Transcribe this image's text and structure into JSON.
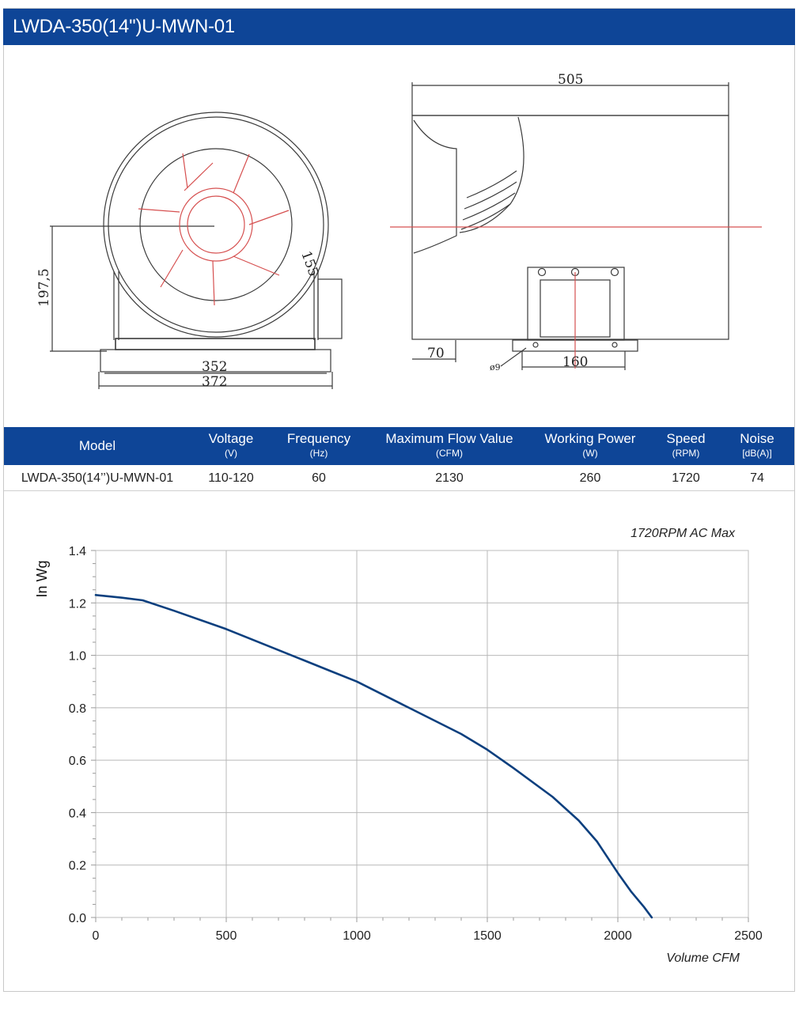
{
  "title": "LWDA-350(14'')U-MWN-01",
  "drawing": {
    "dimensions": {
      "width_top": "505",
      "height_left": "197,5",
      "base_inner": "352",
      "base_outer": "372",
      "flange": "155",
      "inlet": "70",
      "mount_span": "160",
      "hole": "ø9"
    }
  },
  "specs": {
    "headers": [
      {
        "label": "Model",
        "unit": ""
      },
      {
        "label": "Voltage",
        "unit": "(V)"
      },
      {
        "label": "Frequency",
        "unit": "(Hz)"
      },
      {
        "label": "Maximum Flow Value",
        "unit": "(CFM)"
      },
      {
        "label": "Working Power",
        "unit": "(W)"
      },
      {
        "label": "Speed",
        "unit": "(RPM)"
      },
      {
        "label": "Noise",
        "unit": "[dB(A)]"
      }
    ],
    "row": [
      "LWDA-350(14’’)U-MWN-01",
      "110-120",
      "60",
      "2130",
      "260",
      "1720",
      "74"
    ]
  },
  "colors": {
    "header_blue": "#0e4597",
    "curve_blue": "#0b3f7e",
    "drawing_red": "#d65050"
  },
  "chart_data": {
    "type": "line",
    "annotation": "1720RPM AC Max",
    "xlabel": "Volume CFM",
    "ylabel": "In Wg",
    "xlim": [
      0,
      2500
    ],
    "ylim": [
      0,
      1.4
    ],
    "x_ticks": [
      0,
      500,
      1000,
      1500,
      2000,
      2500
    ],
    "y_ticks": [
      0.0,
      0.2,
      0.4,
      0.6,
      0.8,
      1.0,
      1.2,
      1.4
    ],
    "x_tick_labels": [
      "0",
      "500",
      "1000",
      "1500",
      "2000",
      "2500"
    ],
    "y_tick_labels": [
      "0.0",
      "0.2",
      "0.4",
      "0.6",
      "0.8",
      "1.0",
      "1.2",
      "1.4"
    ],
    "grid": true,
    "series": [
      {
        "x": [
          0,
          100,
          180,
          300,
          500,
          700,
          900,
          1000,
          1200,
          1400,
          1500,
          1600,
          1750,
          1850,
          1920,
          1960,
          2000,
          2050,
          2100,
          2130
        ],
        "y": [
          1.23,
          1.22,
          1.21,
          1.17,
          1.1,
          1.02,
          0.94,
          0.9,
          0.8,
          0.7,
          0.64,
          0.57,
          0.46,
          0.37,
          0.29,
          0.23,
          0.17,
          0.1,
          0.04,
          0.0
        ]
      }
    ]
  }
}
